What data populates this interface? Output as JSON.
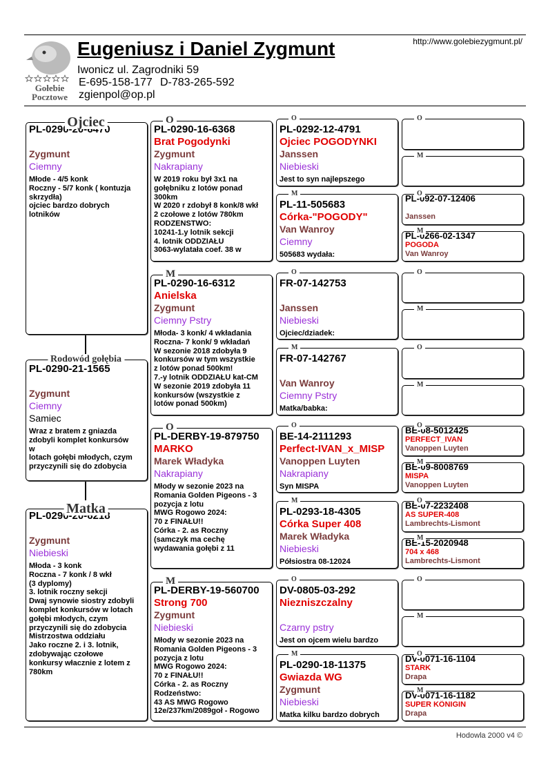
{
  "header": {
    "title": "Eugeniusz i Daniel Zygmunt",
    "address": "Iwonicz ul. Zagrodniki 59",
    "phone": "E-695-158-177",
    "phone2": "D-783-265-592",
    "email": "zgienpol@op.pl",
    "url": "http://www.golebiezygmunt.pl/"
  },
  "logo": {
    "line1": "Gołebie",
    "line2": "Pocztowe"
  },
  "footer": "Hodowla 2000 v4 ©",
  "pedigree": {
    "columns": [
      [
        {
          "label": "Ojciec",
          "ring": "PL-0290-20-6470",
          "breeder": "Zygmunt",
          "color": "Ciemny",
          "notes": [
            "Młode - 4/5 konk",
            "Roczny  - 5/7 konk ( kontuzja",
            "skrzydła)",
            "ojciec bardzo dobrych",
            "lotników"
          ]
        },
        {
          "label": "Rodowód gołębia",
          "ring": "PL-0290-21-1565",
          "breeder": "Zygmunt",
          "color": "Ciemny",
          "sex": "Samiec",
          "notes": [
            "Wraz z bratem z gniazda",
            "zdobyli komplet konkursów",
            "w",
            "lotach gołębi młodych, czym",
            "przyczynili się do zdobycia"
          ]
        },
        {
          "label": "Matka",
          "ring": "PL-0290-20-6218",
          "breeder": "Zygmunt",
          "color": "Niebieski",
          "notes": [
            "Młoda - 3 konk",
            "Roczna - 7 konk / 8 wkł",
            "(3 dyplomy)",
            "3. lotnik roczny sekcji",
            "Dwaj synowie siostry zdobyli",
            "komplet konkursów w lotach",
            "gołębi młodych, czym",
            "przyczynili się do zdobycia",
            "Mistrzostwa oddziału",
            "Jako roczne 2. i 3. lotnik,",
            "zdobywając czołowe",
            "konkursy włacznie z lotem z",
            "780km"
          ]
        }
      ],
      [
        {
          "label": "O",
          "ring": "PL-0290-16-6368",
          "name": "Brat Pogodynki",
          "breeder": "Zygmunt",
          "color": "Nakrapiany",
          "notes": [
            "W 2019 roku był 3x1 na",
            "gołębniku z lotów ponad",
            "300km",
            "W 2020 r zdobył 8 konk/8 wkł",
            "2 czołowe z lotów 780km",
            "RODZENSTWO:",
            "10241-1.y lotnik sekcji",
            "4. lotnik ODDZIAŁU",
            "3063-wylatała coef. 38 w"
          ]
        },
        {
          "label": "M",
          "ring": "PL-0290-16-6312",
          "name": "Anielska",
          "breeder": "Zygmunt",
          "color": "Ciemny Pstry",
          "notes": [
            "Młoda- 3 konk/ 4 wkładania",
            "Roczna- 7 konk/ 9 wkładań",
            "W sezonie 2018 zdobyła 9",
            "konkursów w tym wszystkie",
            "z lotów ponad 500km!",
            "7.-y lotnik ODDZIAŁU kat-CM",
            "W sezonie 2019 zdobyła 11",
            "konkursów (wszystkie z",
            "lotów ponad 500km)"
          ]
        },
        {
          "label": "O",
          "ring": "PL-DERBY-19-879750",
          "name": "MARKO",
          "breeder": "Marek Władyka",
          "color": "Nakrapiany",
          "notes": [
            "Młody w sezonie 2023 na",
            "Romania Golden Pigeons - 3",
            "pozycja z lotu",
            "MWG Rogowo 2024:",
            "70 z FINAŁU!!",
            "Córka - 2. as Roczny",
            "(samczyk ma cechę",
            "wydawania gołębi z 11"
          ]
        },
        {
          "label": "M",
          "ring": "PL-DERBY-19-560700",
          "name": "Strong 700",
          "breeder": "Zygmunt",
          "color": "Niebieski",
          "notes": [
            "Młody w sezonie 2023 na",
            "Romania Golden Pigeons - 3",
            "pozycja z lotu",
            "MWG Rogowo 2024:",
            "70 z FINAŁU!!",
            "Córka - 2. as Roczny",
            "Rodzeństwo:",
            "43 AS MWG Rogowo",
            "12e/237km/2089goł - Rogowo"
          ]
        }
      ],
      [
        {
          "label": "O",
          "ring": "PL-0292-12-4791",
          "name": "Ojciec POGODYNKI",
          "breeder": "Janssen",
          "color": "Niebieski",
          "notes": [
            "Jest to syn najlepszego"
          ]
        },
        {
          "label": "M",
          "ring": "PL-11-505683",
          "name": "Córka-\"POGODY\"",
          "breeder": "Van Wanroy",
          "color": "Ciemny",
          "notes": [
            "505683 wydała:"
          ]
        },
        {
          "label": "O",
          "ring": "FR-07-142753",
          "breeder": "Janssen",
          "color": "Niebieski",
          "notes": [
            "Ojciec/dziadek:"
          ]
        },
        {
          "label": "M",
          "ring": "FR-07-142767",
          "breeder": "Van Wanroy",
          "color": "Ciemny Pstry",
          "notes": [
            "Matka/babka:"
          ]
        },
        {
          "label": "O",
          "ring": "BE-14-2111293",
          "name": "Perfect-IVAN_x_MISP",
          "breeder": "Vanoppen Luyten",
          "color": "Nakrapiany",
          "notes": [
            "Syn MISPA"
          ]
        },
        {
          "label": "M",
          "ring": "PL-0293-18-4305",
          "name": "Córka Super 408",
          "breeder": "Marek Władyka",
          "color": "Niebieski",
          "notes": [
            "Półsiostra 08-12024"
          ]
        },
        {
          "label": "O",
          "ring": "DV-0805-03-292",
          "name": "Niezniszczalny",
          "color": "Czarny pstry",
          "notes": [
            "Jest on ojcem wielu bardzo"
          ]
        },
        {
          "label": "M",
          "ring": "PL-0290-18-11375",
          "name": "Gwiazda WG",
          "breeder": "Zygmunt",
          "color": "Niebieski",
          "notes": [
            "Matka kilku bardzo dobrych"
          ]
        }
      ],
      [
        {
          "label": "O"
        },
        {
          "label": "M"
        },
        {
          "label": "O",
          "ring": "PL-092-07-12406",
          "breeder": "Janssen"
        },
        {
          "label": "M",
          "ring": "PL-0266-02-1347",
          "name": "POGODA",
          "breeder": "Van Wanroy"
        },
        {
          "label": "O"
        },
        {
          "label": "M"
        },
        {
          "label": "O"
        },
        {
          "label": "M"
        },
        {
          "label": "O",
          "ring": "BE-08-5012425",
          "name": "PERFECT_IVAN",
          "breeder": "Vanoppen Luyten"
        },
        {
          "label": "M",
          "ring": "BE-09-8008769",
          "name": "MISPA",
          "breeder": "Vanoppen Luyten"
        },
        {
          "label": "O",
          "ring": "BE-07-2232408",
          "name": "AS SUPER-408",
          "breeder": "Lambrechts-Lismont"
        },
        {
          "label": "M",
          "ring": "BE-15-2020948",
          "name": "704 x 468",
          "breeder": "Lambrechts-Lismont"
        },
        {
          "label": "O"
        },
        {
          "label": "M"
        },
        {
          "label": "O",
          "ring": "DV-0071-16-1104",
          "name": "STARK",
          "breeder": "Drapa"
        },
        {
          "label": "M",
          "ring": "DV-0071-16-1182",
          "name": "SUPER KÖNIGIN",
          "breeder": "Drapa"
        }
      ]
    ]
  }
}
